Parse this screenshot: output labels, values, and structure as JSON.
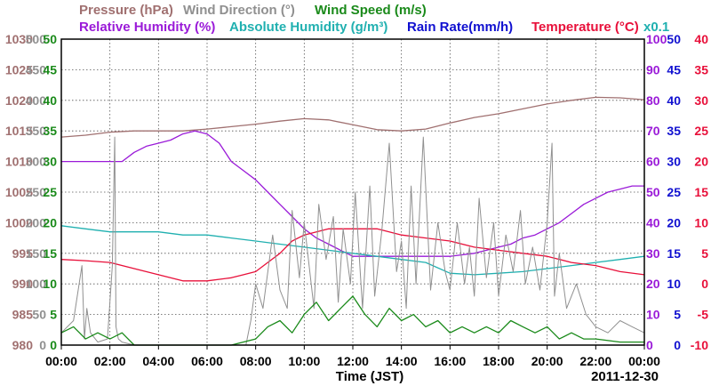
{
  "chart_data": {
    "type": "line",
    "date": "2011-12-30",
    "xlabel": "Time (JST)",
    "x_ticks": [
      "00:00",
      "02:00",
      "04:00",
      "06:00",
      "08:00",
      "10:00",
      "12:00",
      "14:00",
      "16:00",
      "18:00",
      "20:00",
      "22:00",
      "00:00"
    ],
    "xlim": [
      0,
      24
    ],
    "legend": [
      {
        "label": "Pressure (hPa)",
        "color": "#a07070"
      },
      {
        "label": "Wind Direction (°)",
        "color": "#909090"
      },
      {
        "label": "Wind Speed (m/s)",
        "color": "#1a8a1a"
      },
      {
        "label": "Relative Humidity (%)",
        "color": "#9a1ad8"
      },
      {
        "label": "Absolute Humidity (g/m³)",
        "color": "#20b0b0"
      },
      {
        "label": "Rain Rate(mm/h)",
        "color": "#1010d0"
      },
      {
        "label": "Temperature (°C)",
        "color": "#e8103a"
      }
    ],
    "multiplier_note": "x0.1",
    "axes": [
      {
        "name": "pressure",
        "side": "left",
        "color": "#a07070",
        "ylim": [
          980,
          1030
        ],
        "ticks": [
          "980",
          "985",
          "990",
          "995",
          "1000",
          "1005",
          "1010",
          "1015",
          "1020",
          "1025",
          "1030"
        ]
      },
      {
        "name": "wind_direction",
        "side": "left",
        "color": "#909090",
        "ylim": [
          0,
          500
        ],
        "ticks": [
          "0",
          "50",
          "100",
          "150",
          "200",
          "250",
          "300",
          "350",
          "400",
          "450",
          "500"
        ]
      },
      {
        "name": "wind_speed",
        "side": "left",
        "color": "#1a8a1a",
        "ylim": [
          0,
          50
        ],
        "ticks": [
          "0",
          "5",
          "10",
          "15",
          "20",
          "25",
          "30",
          "35",
          "40",
          "45",
          "50"
        ]
      },
      {
        "name": "humidity",
        "side": "right",
        "color": "#9a1ad8",
        "ylim": [
          0,
          100
        ],
        "ticks": [
          "0",
          "10",
          "20",
          "30",
          "40",
          "50",
          "60",
          "70",
          "80",
          "90",
          "100"
        ]
      },
      {
        "name": "rain_rate",
        "side": "right",
        "color": "#1010d0",
        "ylim": [
          0,
          50
        ],
        "ticks": [
          "0",
          "5",
          "10",
          "15",
          "20",
          "25",
          "30",
          "35",
          "40",
          "45",
          "50"
        ]
      },
      {
        "name": "temperature",
        "side": "right",
        "color": "#e8103a",
        "ylim": [
          -10,
          40
        ],
        "ticks": [
          "-10",
          "-5",
          "0",
          "5",
          "10",
          "15",
          "20",
          "25",
          "30",
          "35",
          "40"
        ]
      }
    ],
    "series": [
      {
        "name": "Pressure (hPa)",
        "axis": "pressure",
        "color": "#a07070",
        "x": [
          0,
          1,
          2,
          3,
          4,
          5,
          6,
          7,
          8,
          9,
          10,
          11,
          12,
          13,
          14,
          15,
          16,
          17,
          18,
          19,
          20,
          21,
          22,
          23,
          24
        ],
        "y": [
          1014.0,
          1014.3,
          1014.8,
          1015.0,
          1015.0,
          1015.0,
          1015.3,
          1015.7,
          1016.1,
          1016.6,
          1017.0,
          1016.8,
          1016.0,
          1015.2,
          1015.0,
          1015.3,
          1016.3,
          1017.2,
          1017.8,
          1018.6,
          1019.4,
          1020.0,
          1020.5,
          1020.4,
          1020.1
        ]
      },
      {
        "name": "Relative Humidity (%)",
        "axis": "humidity",
        "color": "#9a1ad8",
        "x": [
          0,
          1,
          2,
          2.5,
          3,
          3.5,
          4,
          4.5,
          5,
          5.5,
          6,
          6.5,
          7,
          7.5,
          8,
          8.5,
          9,
          9.5,
          10,
          10.5,
          11,
          11.5,
          12,
          12.5,
          13,
          14,
          15,
          16,
          17,
          17.5,
          18,
          18.5,
          19,
          19.5,
          20,
          20.5,
          21,
          21.5,
          22,
          22.5,
          23,
          23.5,
          24
        ],
        "y": [
          60,
          60,
          60,
          60,
          63,
          65,
          66,
          67,
          69,
          70,
          69,
          66,
          60,
          57,
          54,
          50,
          46,
          42,
          38,
          35,
          33,
          31,
          29,
          29,
          29,
          29,
          29,
          29,
          30,
          31,
          32,
          33,
          35,
          36,
          38,
          40,
          43,
          46,
          48,
          50,
          51,
          52,
          52
        ]
      },
      {
        "name": "Absolute Humidity (g/m³)",
        "axis": "humidity",
        "color": "#20b0b0",
        "x": [
          0,
          1,
          2,
          3,
          4,
          5,
          6,
          7,
          8,
          9,
          10,
          11,
          12,
          13,
          14,
          15,
          16,
          17,
          18,
          19,
          20,
          21,
          22,
          23,
          24
        ],
        "y": [
          39,
          38,
          37,
          37,
          37,
          36,
          36,
          35,
          34,
          33,
          32,
          31,
          30,
          29,
          28,
          27,
          23.5,
          23,
          23.5,
          24,
          25,
          26,
          27,
          28,
          29
        ]
      },
      {
        "name": "Temperature (°C)",
        "axis": "temperature",
        "color": "#e8103a",
        "x": [
          0,
          1,
          2,
          3,
          4,
          5,
          6,
          7,
          7.5,
          8,
          8.5,
          9,
          9.5,
          10,
          11,
          12,
          13,
          14,
          15,
          16,
          17,
          18,
          19,
          20,
          21,
          22,
          23,
          24
        ],
        "y": [
          4.0,
          3.8,
          3.5,
          2.5,
          1.5,
          0.5,
          0.5,
          1.0,
          1.5,
          2.0,
          3.5,
          5.0,
          7.0,
          8.0,
          9.0,
          9.0,
          9.0,
          8.0,
          7.5,
          7.0,
          6.0,
          5.5,
          5.0,
          4.5,
          3.5,
          3.0,
          2.0,
          1.5
        ]
      },
      {
        "name": "Wind Direction (°)",
        "axis": "wind_direction",
        "color": "#909090",
        "x": [
          0,
          0.5,
          0.85,
          0.95,
          1.05,
          1.2,
          1.5,
          1.9,
          2.1,
          2.2,
          2.25,
          2.35,
          2.5,
          3,
          4,
          5,
          6,
          7,
          7.6,
          7.8,
          8.0,
          8.3,
          8.7,
          9,
          9.3,
          9.5,
          9.8,
          10,
          10.4,
          10.6,
          10.9,
          11.2,
          11.4,
          11.6,
          11.9,
          12.1,
          12.4,
          12.7,
          12.9,
          13.2,
          13.5,
          13.8,
          14,
          14.2,
          14.4,
          14.6,
          14.9,
          15.2,
          15.5,
          15.8,
          16,
          16.3,
          16.6,
          16.8,
          17,
          17.2,
          17.5,
          17.8,
          18,
          18.3,
          18.6,
          18.9,
          19.1,
          19.4,
          19.7,
          20.0,
          20.2,
          20.3,
          20.5,
          20.8,
          21.2,
          21.6,
          22,
          22.5,
          23,
          23.5,
          24
        ],
        "y": [
          20,
          40,
          130,
          10,
          60,
          20,
          5,
          10,
          130,
          340,
          30,
          10,
          5,
          0,
          0,
          0,
          0,
          0,
          0,
          40,
          100,
          60,
          180,
          90,
          60,
          220,
          110,
          200,
          60,
          230,
          140,
          210,
          70,
          190,
          100,
          250,
          60,
          260,
          80,
          190,
          330,
          120,
          170,
          60,
          260,
          100,
          340,
          90,
          200,
          120,
          90,
          200,
          100,
          160,
          80,
          240,
          110,
          200,
          80,
          180,
          120,
          220,
          100,
          160,
          90,
          200,
          330,
          80,
          150,
          60,
          100,
          50,
          30,
          20,
          40,
          30,
          20
        ]
      },
      {
        "name": "Wind Speed (m/s)",
        "axis": "wind_speed",
        "color": "#1a8a1a",
        "x": [
          0,
          0.5,
          1,
          1.5,
          2,
          2.5,
          3,
          4,
          5,
          6,
          7,
          8,
          8.5,
          9,
          9.5,
          10,
          10.5,
          11,
          11.5,
          12,
          12.5,
          13,
          13.5,
          14,
          14.5,
          15,
          15.5,
          16,
          16.5,
          17,
          17.5,
          18,
          18.5,
          19,
          19.5,
          20,
          20.5,
          21,
          21.5,
          22,
          23,
          24
        ],
        "y": [
          2,
          3,
          1,
          2,
          1,
          2,
          0,
          0,
          0,
          0,
          0,
          1,
          3,
          4,
          2,
          5,
          7,
          4,
          6,
          8,
          5,
          3,
          6,
          4,
          5,
          3,
          4,
          2,
          3,
          2,
          3,
          2,
          4,
          3,
          2,
          3,
          1,
          2,
          1,
          1,
          0.5,
          0.5
        ]
      }
    ]
  }
}
